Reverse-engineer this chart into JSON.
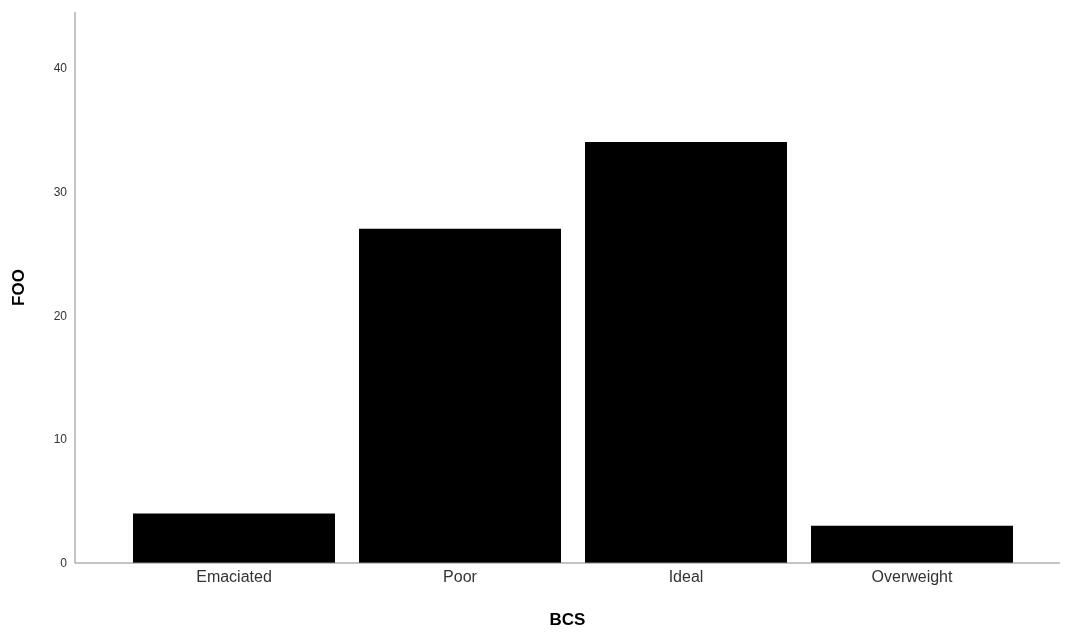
{
  "chart_data": {
    "type": "bar",
    "xlabel": "BCS",
    "ylabel": "FOO",
    "categories": [
      "Emaciated",
      "Poor",
      "Ideal",
      "Overweight"
    ],
    "values": [
      4,
      27,
      34,
      3
    ],
    "color": "#000000",
    "ylim": [
      0,
      44.5
    ],
    "yticks": [
      0,
      10,
      20,
      30,
      40
    ],
    "grid": false,
    "legend": false
  }
}
